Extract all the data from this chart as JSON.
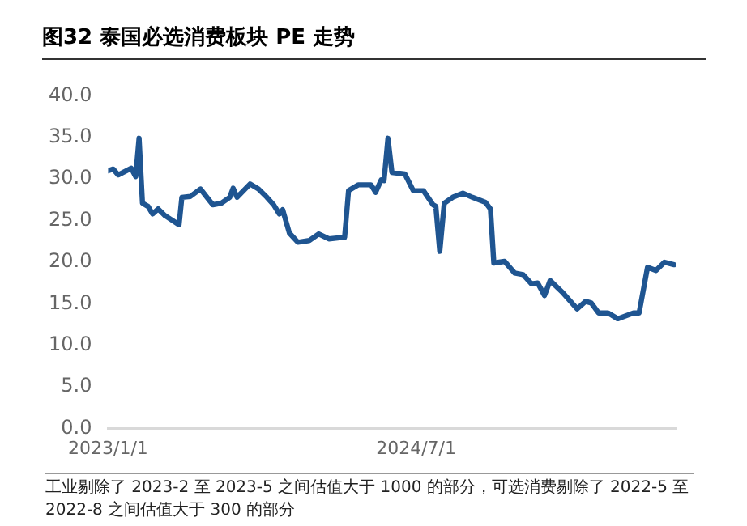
{
  "chart_data": {
    "type": "line",
    "title": "图32 泰国必选消费板块 PE 走势",
    "annotations": [
      "工业剔除了 2023-2 至 2023-5 之间估值大于 1000 的部分，可选消费剔除了 2022-5 至 2022-8 之间估值大于 300 的部分"
    ],
    "x": [
      "2023-01-01",
      "2023-01-10",
      "2023-01-19",
      "2023-02-11",
      "2023-02-19",
      "2023-02-25",
      "2023-03-03",
      "2023-03-13",
      "2023-03-21",
      "2023-03-31",
      "2023-04-12",
      "2023-05-07",
      "2023-05-12",
      "2023-05-27",
      "2023-06-14",
      "2023-07-06",
      "2023-07-21",
      "2023-08-05",
      "2023-08-11",
      "2023-08-18",
      "2023-09-10",
      "2023-09-25",
      "2023-10-10",
      "2023-10-22",
      "2023-11-01",
      "2023-11-07",
      "2023-11-19",
      "2023-12-04",
      "2023-12-24",
      "2024-01-10",
      "2024-01-28",
      "2024-02-25",
      "2024-03-03",
      "2024-03-20",
      "2024-04-12",
      "2024-04-20",
      "2024-04-30",
      "2024-05-05",
      "2024-05-12",
      "2024-05-19",
      "2024-06-11",
      "2024-06-26",
      "2024-07-14",
      "2024-07-31",
      "2024-08-05",
      "2024-08-12",
      "2024-08-20",
      "2024-09-04",
      "2024-09-22",
      "2024-10-09",
      "2024-11-01",
      "2024-11-10",
      "2024-11-16",
      "2024-12-05",
      "2024-12-23",
      "2025-01-07",
      "2025-01-22",
      "2025-02-02",
      "2025-02-14",
      "2025-02-24",
      "2025-03-19",
      "2025-04-13",
      "2025-04-28",
      "2025-05-08",
      "2025-05-21",
      "2025-06-07",
      "2025-06-24",
      "2025-07-22",
      "2025-08-01",
      "2025-08-16",
      "2025-08-31",
      "2025-09-15",
      "2025-10-02"
    ],
    "series": [
      {
        "color": "#1f5591",
        "values": [
          31.0,
          31.2,
          30.5,
          31.3,
          30.3,
          34.9,
          27.1,
          26.7,
          25.8,
          26.4,
          25.6,
          24.5,
          27.8,
          27.9,
          28.8,
          26.9,
          27.1,
          27.8,
          28.9,
          27.8,
          29.4,
          28.8,
          27.8,
          26.9,
          25.8,
          26.3,
          23.5,
          22.4,
          22.6,
          23.4,
          22.8,
          23.0,
          28.6,
          29.3,
          29.3,
          28.4,
          29.9,
          29.8,
          34.9,
          30.8,
          30.6,
          28.6,
          28.6,
          26.9,
          26.7,
          21.3,
          27.1,
          27.8,
          28.3,
          27.8,
          27.2,
          26.4,
          19.9,
          20.1,
          18.7,
          18.5,
          17.4,
          17.5,
          16.0,
          17.8,
          16.3,
          14.4,
          15.3,
          15.1,
          13.9,
          13.9,
          13.2,
          13.9,
          13.9,
          19.4,
          19.0,
          20.0,
          19.7
        ]
      }
    ],
    "xlim": [
      "2023-01-01",
      "2025-10-05"
    ],
    "xticks": [
      {
        "value": "2023-01-01",
        "label": "2023/1/1"
      },
      {
        "value": "2024-07-01",
        "label": "2024/7/1"
      }
    ],
    "ylim": [
      0,
      40
    ],
    "yticks": [
      {
        "value": 0,
        "label": "0.0"
      },
      {
        "value": 5,
        "label": "5.0"
      },
      {
        "value": 10,
        "label": "10.0"
      },
      {
        "value": 15,
        "label": "15.0"
      },
      {
        "value": 20,
        "label": "20.0"
      },
      {
        "value": 25,
        "label": "25.0"
      },
      {
        "value": 30,
        "label": "30.0"
      },
      {
        "value": 35,
        "label": "35.0"
      },
      {
        "value": 40,
        "label": "40.0"
      }
    ],
    "grid": false,
    "legend": false,
    "marker": "none",
    "line_style": "solid"
  }
}
